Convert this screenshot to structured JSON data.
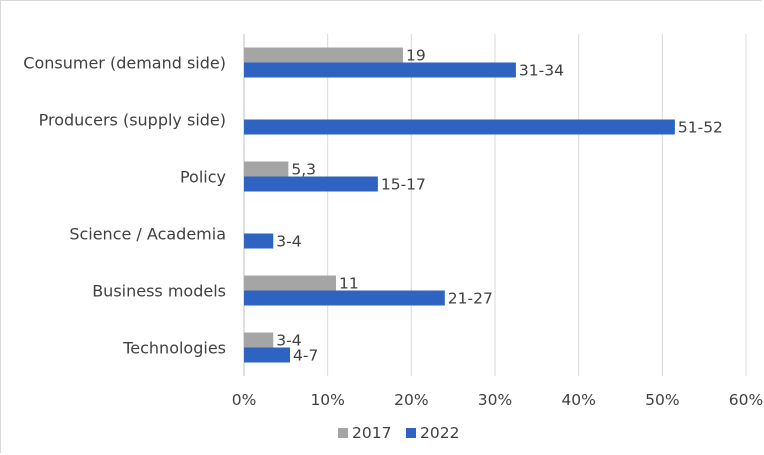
{
  "chart_data": {
    "type": "bar",
    "orientation": "horizontal",
    "title": "",
    "xlabel": "",
    "ylabel": "",
    "categories": [
      "Consumer (demand side)",
      "Producers (supply side)",
      "Policy",
      "Science / Academia",
      "Business models",
      "Technologies"
    ],
    "series": [
      {
        "name": "2017",
        "color": "#a5a5a5",
        "values": [
          19,
          null,
          5.3,
          null,
          11,
          3.5
        ],
        "labels": [
          "19",
          "",
          "5,3",
          "",
          "11",
          "3-4"
        ]
      },
      {
        "name": "2022",
        "color": "#2e63c2",
        "values": [
          32.5,
          51.5,
          16,
          3.5,
          24,
          5.5
        ],
        "labels": [
          "31-34",
          "51-52",
          "15-17",
          "3-4",
          "21-27",
          "4-7"
        ]
      }
    ],
    "xlim": [
      0,
      60
    ],
    "xticks": [
      0,
      10,
      20,
      30,
      40,
      50,
      60
    ],
    "xtick_labels": [
      "0%",
      "10%",
      "20%",
      "30%",
      "40%",
      "50%",
      "60%"
    ],
    "grid": "vertical",
    "legend": "bottom"
  }
}
